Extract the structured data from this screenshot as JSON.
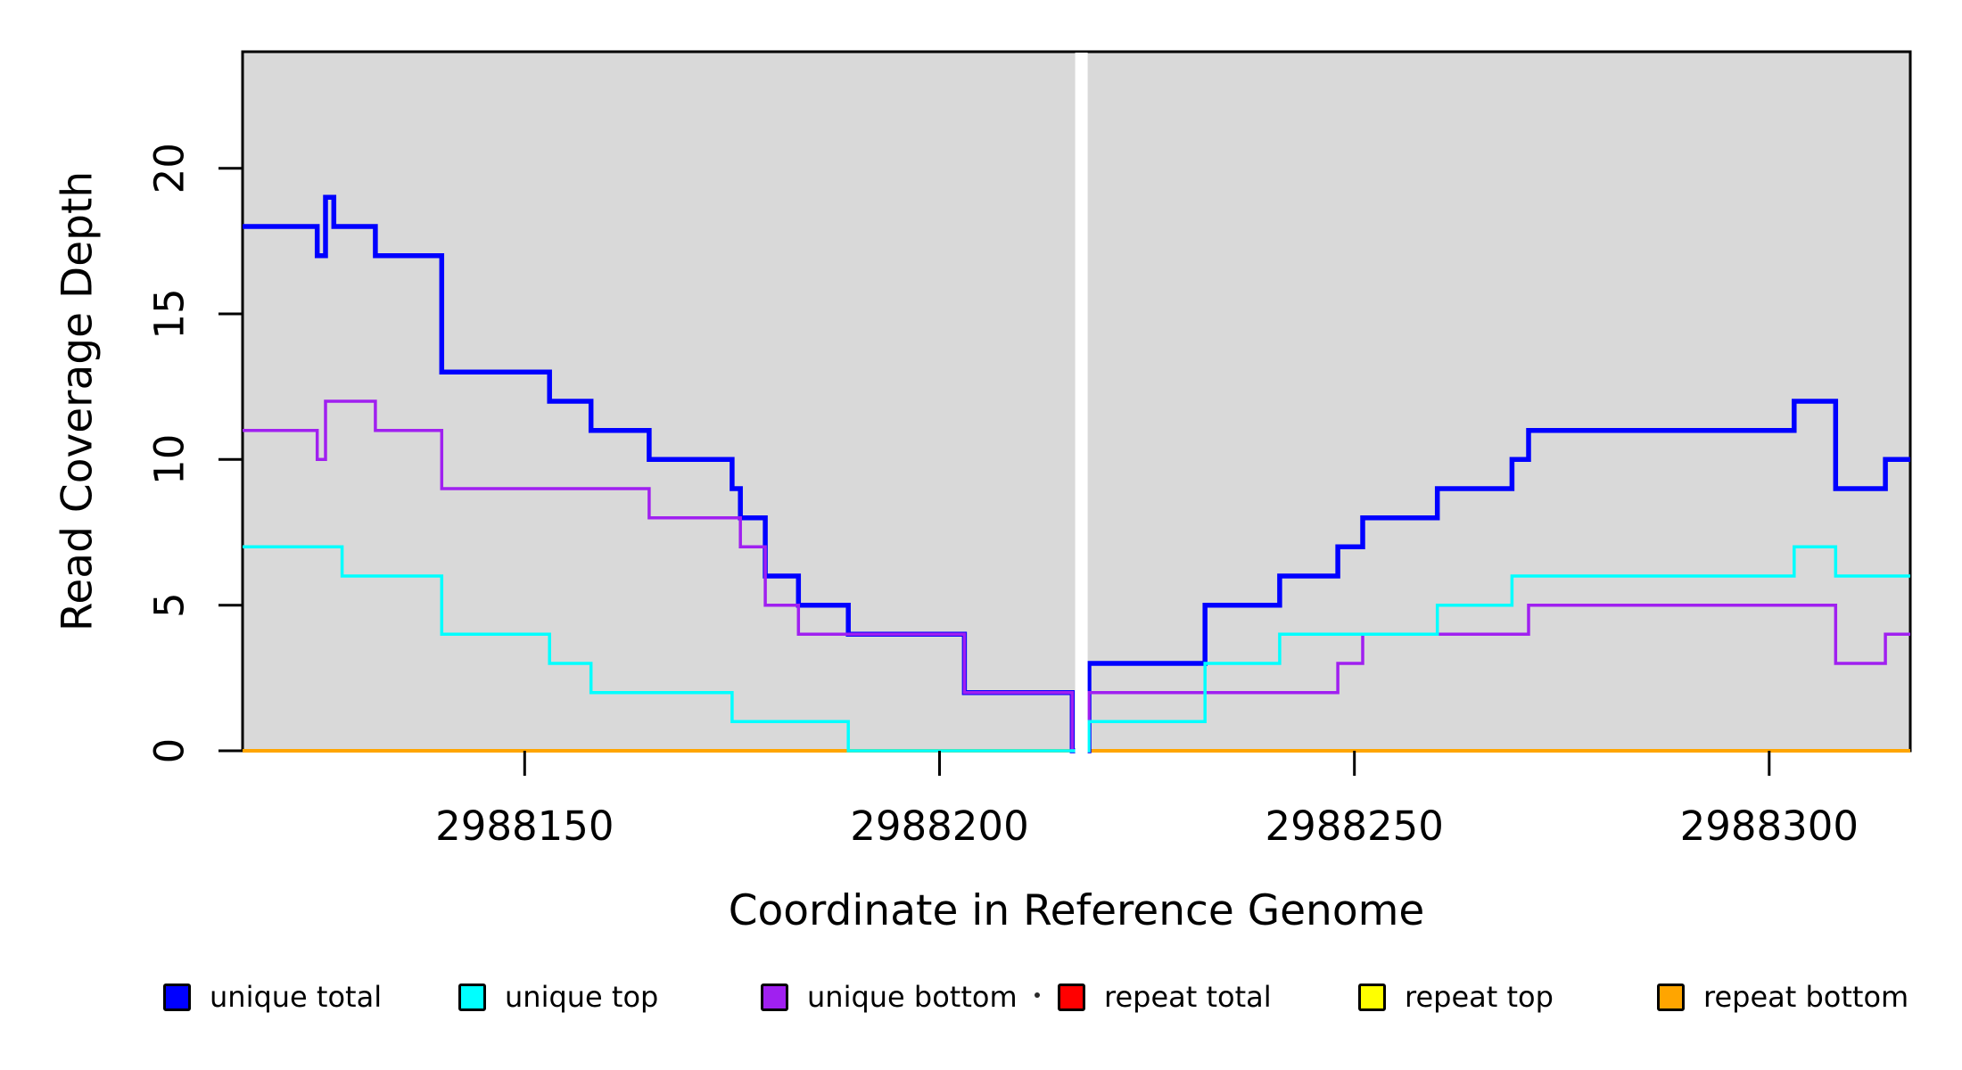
{
  "figure": {
    "background": "#FFFFFF",
    "xlabel": "Coordinate in Reference Genome",
    "ylabel": "Read Coverage Depth"
  },
  "chart_data": {
    "type": "line",
    "line_style": "step",
    "title": "",
    "xlabel": "Coordinate in Reference Genome",
    "ylabel": "Read Coverage Depth",
    "xlim": [
      2988116,
      2988317
    ],
    "ylim": [
      0,
      24
    ],
    "x_ticks": [
      2988150,
      2988200,
      2988250,
      2988300
    ],
    "y_ticks": [
      0,
      5,
      10,
      15,
      20
    ],
    "grid": false,
    "plot_background": "#D9D9D9",
    "frame_color": "#000000",
    "tick_color": "#000000",
    "gap_mask": {
      "x_start": 2988216.35,
      "x_end": 2988217.85,
      "color": "#FFFFFF"
    },
    "legend_position": "bottom",
    "draw_order": [
      "repeat total",
      "repeat top",
      "repeat bottom",
      "unique total",
      "unique bottom",
      "unique top"
    ],
    "series": [
      {
        "name": "unique total",
        "color": "#0000FF",
        "line_width": 5.5,
        "points": [
          [
            2988116,
            18
          ],
          [
            2988125,
            17
          ],
          [
            2988126,
            19
          ],
          [
            2988127,
            18
          ],
          [
            2988132,
            17
          ],
          [
            2988140,
            13
          ],
          [
            2988153,
            12
          ],
          [
            2988158,
            11
          ],
          [
            2988165,
            10
          ],
          [
            2988175,
            9
          ],
          [
            2988176,
            8
          ],
          [
            2988179,
            6
          ],
          [
            2988183,
            5
          ],
          [
            2988189,
            4
          ],
          [
            2988203,
            2
          ],
          [
            2988216,
            0
          ],
          [
            2988218,
            3
          ],
          [
            2988232,
            5
          ],
          [
            2988241,
            6
          ],
          [
            2988248,
            7
          ],
          [
            2988251,
            8
          ],
          [
            2988260,
            9
          ],
          [
            2988269,
            10
          ],
          [
            2988271,
            11
          ],
          [
            2988303,
            12
          ],
          [
            2988308,
            9
          ],
          [
            2988314,
            10
          ],
          [
            2988317,
            10
          ]
        ]
      },
      {
        "name": "unique top",
        "color": "#00FFFF",
        "line_width": 3.5,
        "points": [
          [
            2988116,
            7
          ],
          [
            2988128,
            6
          ],
          [
            2988140,
            4
          ],
          [
            2988153,
            3
          ],
          [
            2988158,
            2
          ],
          [
            2988175,
            1
          ],
          [
            2988189,
            0
          ],
          [
            2988216,
            0
          ],
          [
            2988218,
            1
          ],
          [
            2988232,
            3
          ],
          [
            2988241,
            4
          ],
          [
            2988260,
            5
          ],
          [
            2988269,
            6
          ],
          [
            2988303,
            7
          ],
          [
            2988308,
            6
          ],
          [
            2988317,
            6
          ]
        ]
      },
      {
        "name": "unique bottom",
        "color": "#A020F0",
        "line_width": 3.5,
        "points": [
          [
            2988116,
            11
          ],
          [
            2988125,
            10
          ],
          [
            2988126,
            12
          ],
          [
            2988132,
            11
          ],
          [
            2988140,
            9
          ],
          [
            2988165,
            8
          ],
          [
            2988176,
            7
          ],
          [
            2988179,
            5
          ],
          [
            2988183,
            4
          ],
          [
            2988203,
            2
          ],
          [
            2988216,
            0
          ],
          [
            2988218,
            2
          ],
          [
            2988248,
            3
          ],
          [
            2988251,
            4
          ],
          [
            2988271,
            5
          ],
          [
            2988308,
            3
          ],
          [
            2988314,
            4
          ],
          [
            2988317,
            4
          ]
        ]
      },
      {
        "name": "repeat total",
        "color": "#FF0000",
        "line_width": 3.5,
        "points": [
          [
            2988116,
            0
          ],
          [
            2988317,
            0
          ]
        ]
      },
      {
        "name": "repeat top",
        "color": "#FFFF00",
        "line_width": 3.5,
        "points": [
          [
            2988116,
            0
          ],
          [
            2988317,
            0
          ]
        ]
      },
      {
        "name": "repeat bottom",
        "color": "#FFA500",
        "line_width": 4,
        "points": [
          [
            2988116,
            0
          ],
          [
            2988317,
            0
          ]
        ]
      }
    ]
  }
}
